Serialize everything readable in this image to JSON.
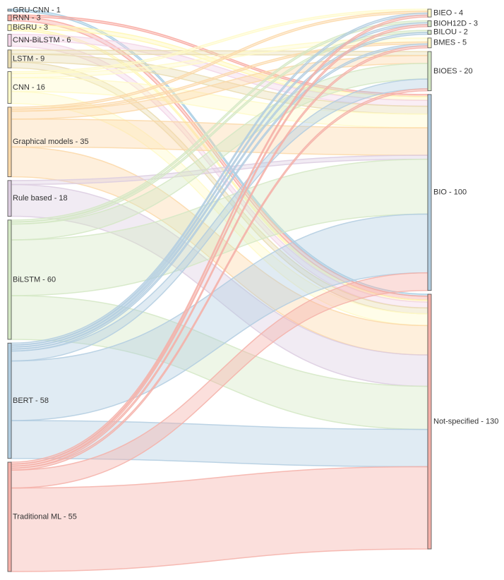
{
  "chart_data": {
    "type": "sankey",
    "title": "",
    "sources": [
      {
        "name": "GRU-CNN",
        "value": 1,
        "label": "GRU-CNN - 1",
        "color": "#a6cde3"
      },
      {
        "name": "RNN",
        "value": 3,
        "label": "RNN - 3",
        "color": "#f8a89f"
      },
      {
        "name": "BiGRU",
        "value": 3,
        "label": "BiGRU - 3",
        "color": "#fff7b3"
      },
      {
        "name": "CNN-BiLSTM",
        "value": 6,
        "label": "CNN-BiLSTM - 6",
        "color": "#f2d4e6"
      },
      {
        "name": "LSTM",
        "value": 9,
        "label": "LSTM - 9",
        "color": "#e9dcb0"
      },
      {
        "name": "CNN",
        "value": 16,
        "label": "CNN - 16",
        "color": "#fffac8"
      },
      {
        "name": "Graphical models",
        "value": 35,
        "label": "Graphical models - 35",
        "color": "#fcd8a8"
      },
      {
        "name": "Rule based",
        "value": 18,
        "label": "Rule based - 18",
        "color": "#dccde0"
      },
      {
        "name": "BiLSTM",
        "value": 60,
        "label": "BiLSTM - 60",
        "color": "#d4e8c4"
      },
      {
        "name": "BERT",
        "value": 58,
        "label": "BERT - 58",
        "color": "#b1cde0"
      },
      {
        "name": "Traditional ML",
        "value": 55,
        "label": "Traditional ML - 55",
        "color": "#f5b0a8"
      }
    ],
    "targets": [
      {
        "name": "BIEO",
        "value": 4,
        "label": "BIEO - 4"
      },
      {
        "name": "BIOH12D",
        "value": 3,
        "label": "BIOH12D - 3"
      },
      {
        "name": "BILOU",
        "value": 2,
        "label": "BILOU - 2"
      },
      {
        "name": "BMES",
        "value": 5,
        "label": "BMES - 5"
      },
      {
        "name": "BIOES",
        "value": 20,
        "label": "BIOES - 20"
      },
      {
        "name": "BIO",
        "value": 100,
        "label": "BIO - 100"
      },
      {
        "name": "Not-specified",
        "value": 130,
        "label": "Not-specified - 130"
      }
    ],
    "flows": [
      {
        "source": "GRU-CNN",
        "target": "Not-specified",
        "value": 1
      },
      {
        "source": "RNN",
        "target": "BIO",
        "value": 1
      },
      {
        "source": "RNN",
        "target": "Not-specified",
        "value": 2
      },
      {
        "source": "BiGRU",
        "target": "BIO",
        "value": 2
      },
      {
        "source": "BiGRU",
        "target": "Not-specified",
        "value": 1
      },
      {
        "source": "CNN-BiLSTM",
        "target": "BIO",
        "value": 3
      },
      {
        "source": "CNN-BiLSTM",
        "target": "Not-specified",
        "value": 3
      },
      {
        "source": "LSTM",
        "target": "BIOES",
        "value": 2
      },
      {
        "source": "LSTM",
        "target": "BIO",
        "value": 4
      },
      {
        "source": "LSTM",
        "target": "Not-specified",
        "value": 3
      },
      {
        "source": "CNN",
        "target": "BIEO",
        "value": 1
      },
      {
        "source": "CNN",
        "target": "BMES",
        "value": 2
      },
      {
        "source": "CNN",
        "target": "BIO",
        "value": 7
      },
      {
        "source": "CNN",
        "target": "Not-specified",
        "value": 6
      },
      {
        "source": "Graphical models",
        "target": "BIEO",
        "value": 1
      },
      {
        "source": "Graphical models",
        "target": "BMES",
        "value": 1
      },
      {
        "source": "Graphical models",
        "target": "BIOES",
        "value": 4
      },
      {
        "source": "Graphical models",
        "target": "BIO",
        "value": 14
      },
      {
        "source": "Graphical models",
        "target": "Not-specified",
        "value": 15
      },
      {
        "source": "Rule based",
        "target": "BIO",
        "value": 2
      },
      {
        "source": "Rule based",
        "target": "Not-specified",
        "value": 16
      },
      {
        "source": "BiLSTM",
        "target": "BIOH12D",
        "value": 1
      },
      {
        "source": "BiLSTM",
        "target": "BILOU",
        "value": 1
      },
      {
        "source": "BiLSTM",
        "target": "BIOES",
        "value": 8
      },
      {
        "source": "BiLSTM",
        "target": "BIO",
        "value": 28
      },
      {
        "source": "BiLSTM",
        "target": "Not-specified",
        "value": 22
      },
      {
        "source": "BERT",
        "target": "BIEO",
        "value": 1
      },
      {
        "source": "BERT",
        "target": "BIOH12D",
        "value": 1
      },
      {
        "source": "BERT",
        "target": "BILOU",
        "value": 1
      },
      {
        "source": "BERT",
        "target": "BMES",
        "value": 1
      },
      {
        "source": "BERT",
        "target": "BIOES",
        "value": 5
      },
      {
        "source": "BERT",
        "target": "BIO",
        "value": 30
      },
      {
        "source": "BERT",
        "target": "Not-specified",
        "value": 19
      },
      {
        "source": "Traditional ML",
        "target": "BIEO",
        "value": 1
      },
      {
        "source": "Traditional ML",
        "target": "BIOH12D",
        "value": 1
      },
      {
        "source": "Traditional ML",
        "target": "BMES",
        "value": 1
      },
      {
        "source": "Traditional ML",
        "target": "BIOES",
        "value": 1
      },
      {
        "source": "Traditional ML",
        "target": "BIO",
        "value": 9
      },
      {
        "source": "Traditional ML",
        "target": "Not-specified",
        "value": 42
      }
    ]
  }
}
